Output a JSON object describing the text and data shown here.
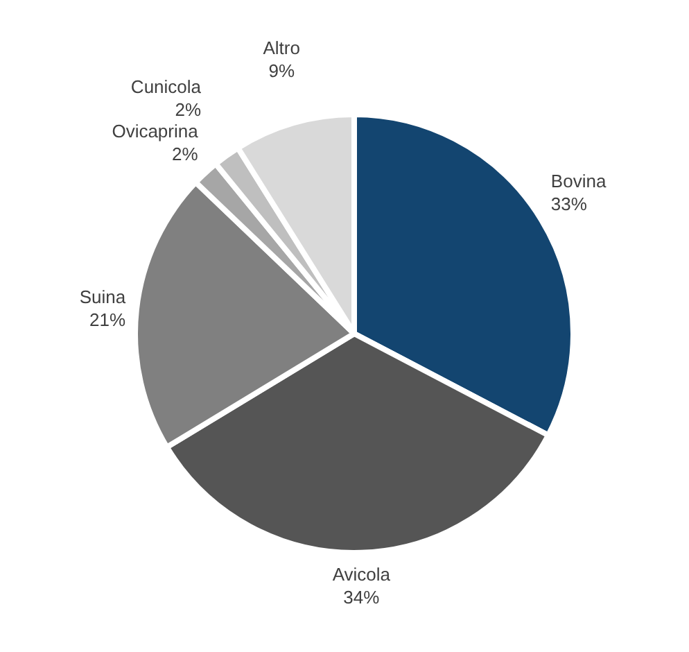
{
  "chart_data": {
    "type": "pie",
    "categories": [
      "Bovina",
      "Avicola",
      "Suina",
      "Ovicaprina",
      "Cunicola",
      "Altro"
    ],
    "values": [
      33,
      34,
      21,
      2,
      2,
      9
    ],
    "colors": [
      "#134570",
      "#555555",
      "#808080",
      "#a6a6a6",
      "#bfbfbf",
      "#d9d9d9"
    ],
    "value_labels": [
      "33%",
      "34%",
      "21%",
      "2%",
      "2%",
      "9%"
    ],
    "legend": false
  }
}
